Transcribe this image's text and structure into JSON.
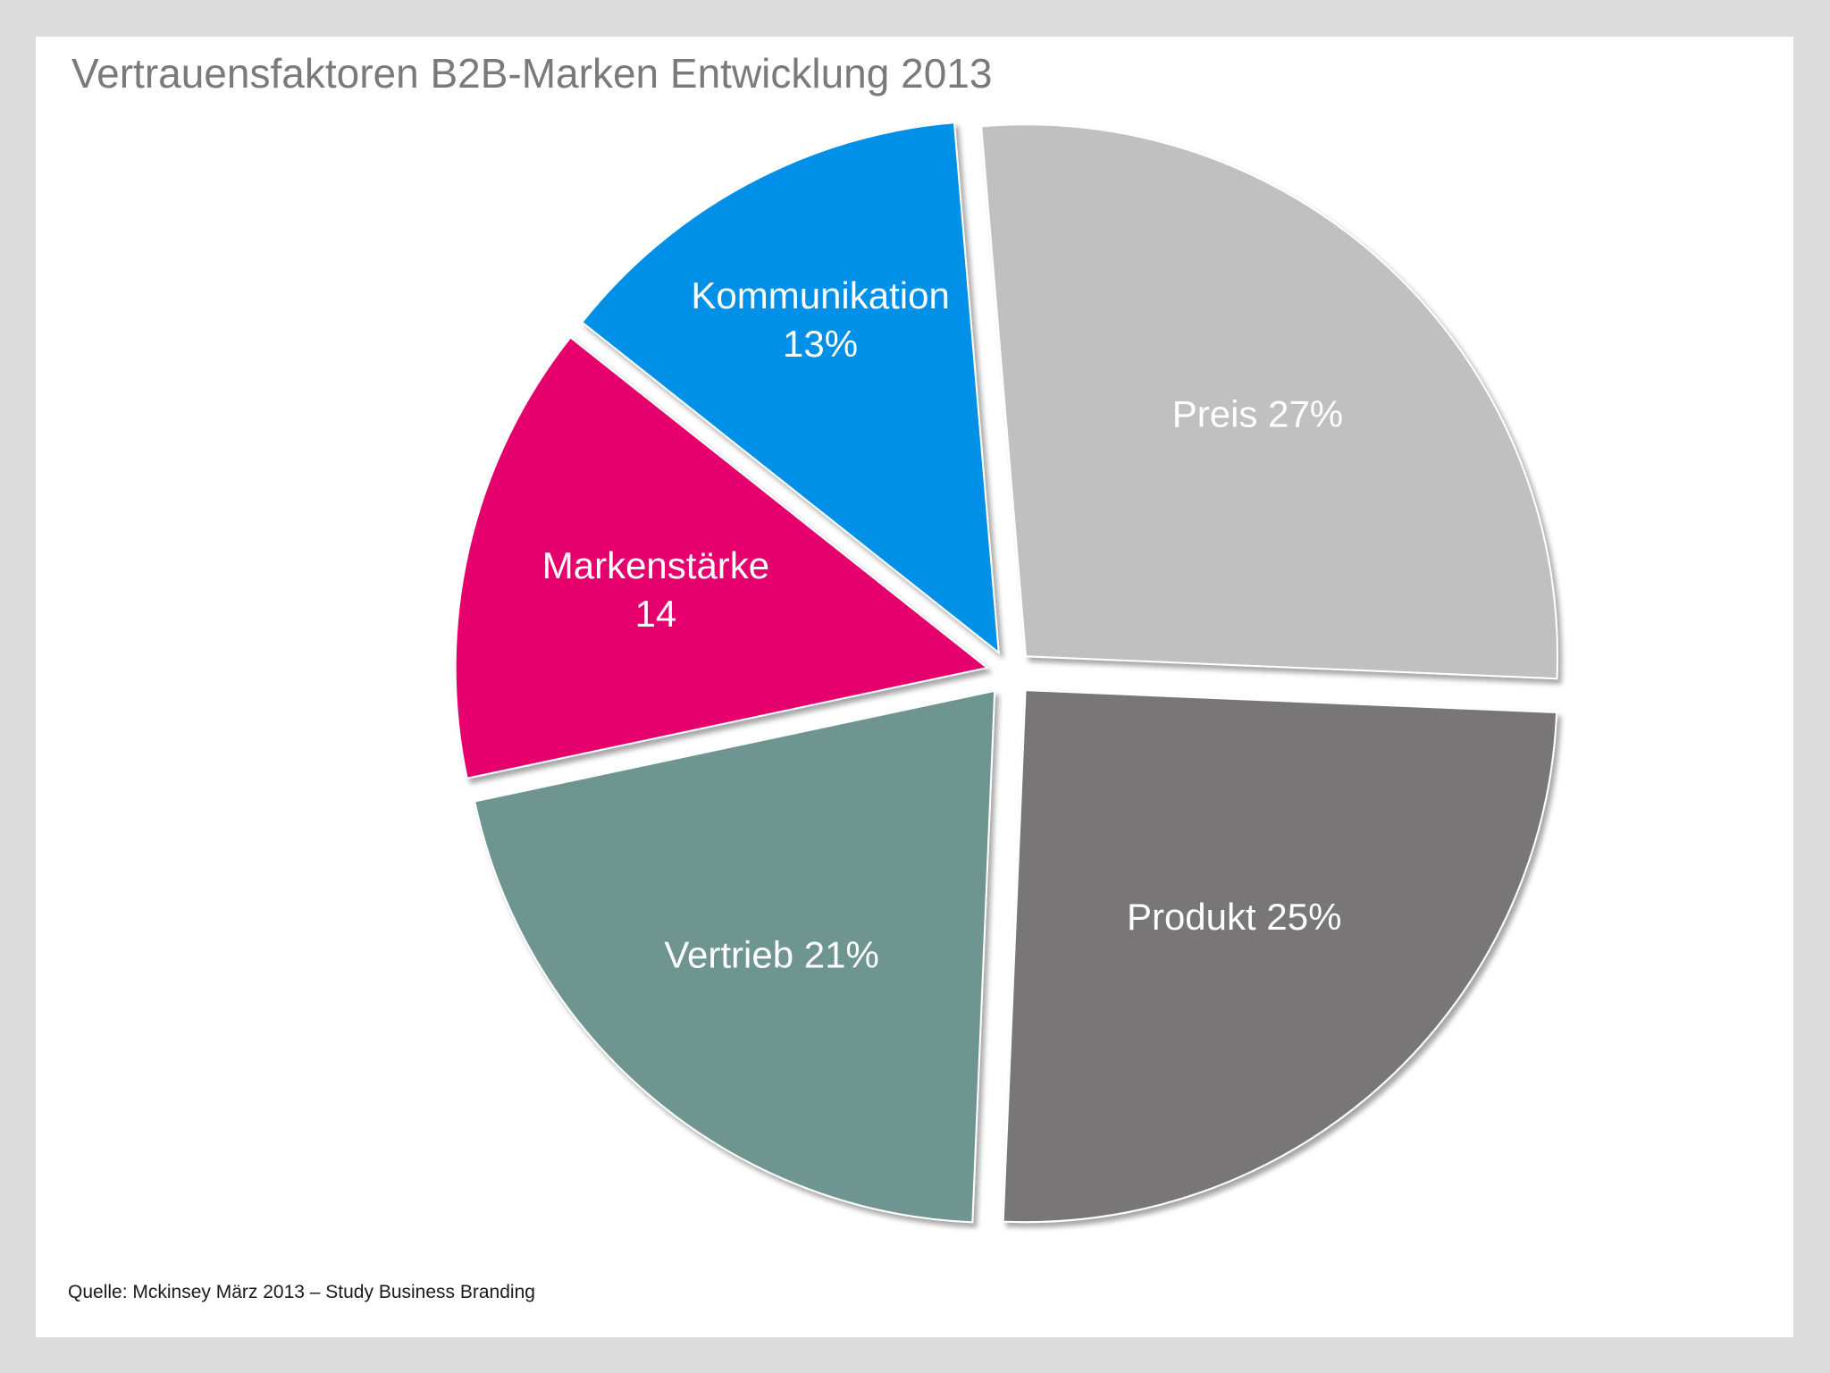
{
  "title": "Vertrauensfaktoren B2B-Marken Entwicklung 2013",
  "source": "Quelle: Mckinsey März 2013 – Study Business Branding",
  "chart_data": {
    "type": "pie",
    "title": "Vertrauensfaktoren B2B-Marken Entwicklung 2013",
    "slices": [
      {
        "name": "Markenstärke",
        "value": 14,
        "color": "#e6006e",
        "label_lines": [
          "Markenstärke",
          "14"
        ]
      },
      {
        "name": "Kommunikation",
        "value": 13,
        "color": "#0090e8",
        "label_lines": [
          "Kommunikation",
          "13%"
        ]
      },
      {
        "name": "Preis",
        "value": 27,
        "color": "#c1c0c1",
        "label_lines": [
          "Preis 27%"
        ]
      },
      {
        "name": "Produkt",
        "value": 25,
        "color": "#787677",
        "label_lines": [
          "Produkt 25%"
        ]
      },
      {
        "name": "Vertrieb",
        "value": 21,
        "color": "#6e9590",
        "label_lines": [
          "Vertrieb  21%"
        ]
      }
    ],
    "legend": "none",
    "exploded": true
  }
}
